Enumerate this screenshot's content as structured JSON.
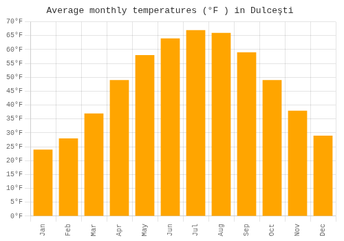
{
  "chart_data": {
    "type": "bar",
    "title": "Average monthly temperatures (°F ) in Dulceşti",
    "categories": [
      "Jan",
      "Feb",
      "Mar",
      "Apr",
      "May",
      "Jun",
      "Jul",
      "Aug",
      "Sep",
      "Oct",
      "Nov",
      "Dec"
    ],
    "values": [
      24,
      28,
      37,
      49,
      58,
      64,
      67,
      66,
      59,
      49,
      38,
      29
    ],
    "color": "#FFA500",
    "ylim": [
      0,
      70
    ],
    "yticks": [
      {
        "value": 0,
        "label": "0°F"
      },
      {
        "value": 5,
        "label": "5°F"
      },
      {
        "value": 10,
        "label": "10°F"
      },
      {
        "value": 15,
        "label": "15°F"
      },
      {
        "value": 20,
        "label": "20°F"
      },
      {
        "value": 25,
        "label": "25°F"
      },
      {
        "value": 30,
        "label": "30°F"
      },
      {
        "value": 35,
        "label": "35°F"
      },
      {
        "value": 40,
        "label": "40°F"
      },
      {
        "value": 45,
        "label": "45°F"
      },
      {
        "value": 50,
        "label": "50°F"
      },
      {
        "value": 55,
        "label": "55°F"
      },
      {
        "value": 60,
        "label": "60°F"
      },
      {
        "value": 65,
        "label": "65°F"
      },
      {
        "value": 70,
        "label": "70°F"
      }
    ],
    "grid": true
  }
}
